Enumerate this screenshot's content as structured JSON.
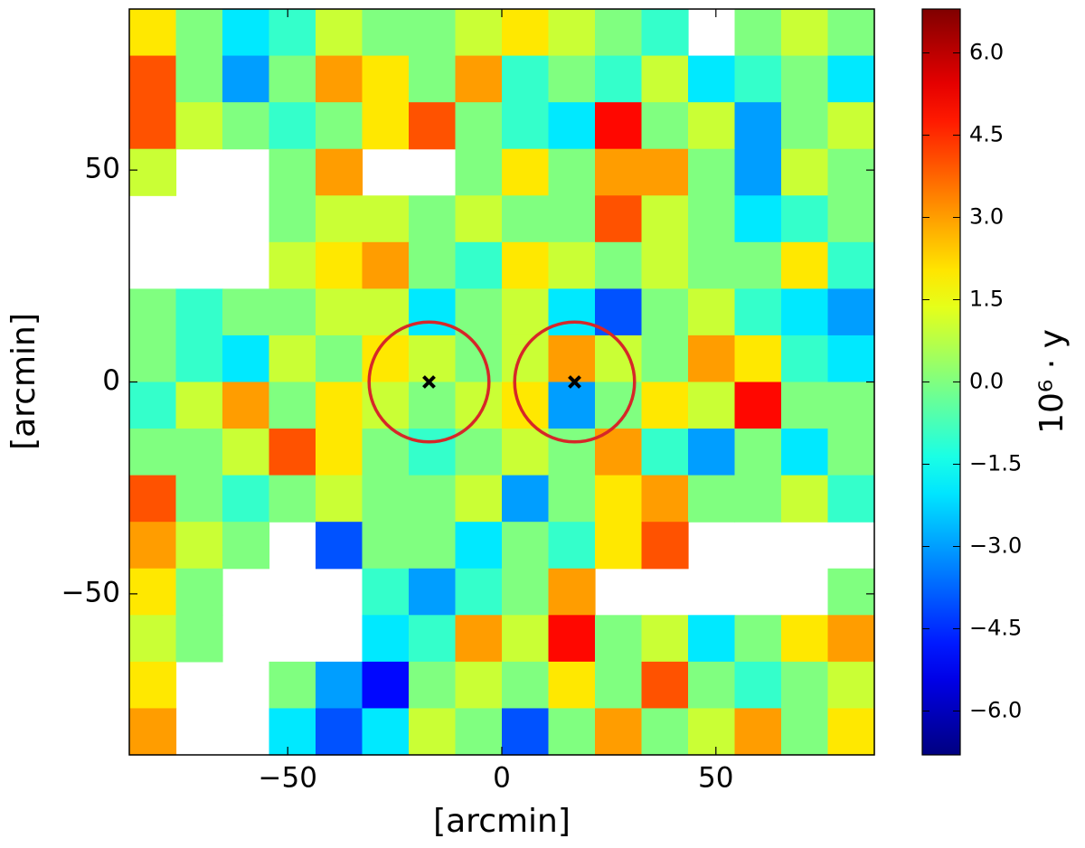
{
  "chart_data": {
    "type": "heatmap",
    "xlabel": "[arcmin]",
    "ylabel": "[arcmin]",
    "xlim": [
      -87,
      87
    ],
    "ylim": [
      -88,
      88
    ],
    "xticks": [
      {
        "value": -50,
        "label": "−50"
      },
      0,
      50
    ],
    "yticks": [
      {
        "value": -50,
        "label": "−50"
      },
      0,
      50
    ],
    "colormap": "jet",
    "clim": [
      -6.8,
      6.8
    ],
    "colorbar_label": "10⁶ · y",
    "colorbar_ticks": [
      {
        "value": -6,
        "label": "−6.0"
      },
      {
        "value": -4.5,
        "label": "−4.5"
      },
      {
        "value": -3,
        "label": "−3.0"
      },
      {
        "value": -1.5,
        "label": "−1.5"
      },
      {
        "value": 0,
        "label": "0.0"
      },
      {
        "value": 1.5,
        "label": "1.5"
      },
      {
        "value": 3,
        "label": "3.0"
      },
      {
        "value": 4.5,
        "label": "4.5"
      },
      {
        "value": 6,
        "label": "6.0"
      }
    ],
    "z": [
      [
        2,
        0,
        -2,
        -1,
        1,
        0,
        0,
        1,
        2,
        1,
        0,
        -1,
        null,
        0,
        1,
        0
      ],
      [
        4,
        0,
        -3,
        0,
        3,
        2,
        0,
        3,
        -1,
        0,
        -1,
        1,
        -2,
        -1,
        0,
        -2
      ],
      [
        4,
        1,
        0,
        -1,
        0,
        2,
        4,
        0,
        -1,
        -2,
        5,
        0,
        1,
        -3,
        0,
        1
      ],
      [
        1,
        null,
        null,
        0,
        3,
        null,
        null,
        0,
        2,
        0,
        3,
        3,
        0,
        -3,
        1,
        0
      ],
      [
        null,
        null,
        null,
        0,
        1,
        1,
        0,
        1,
        0,
        0,
        4,
        1,
        0,
        -2,
        -1,
        0
      ],
      [
        null,
        null,
        null,
        1,
        2,
        3,
        0,
        -1,
        2,
        1,
        0,
        1,
        0,
        0,
        2,
        -1
      ],
      [
        0,
        -1,
        0,
        0,
        1,
        1,
        -2,
        0,
        1,
        -2,
        -4,
        0,
        1,
        -1,
        -2,
        -3
      ],
      [
        0,
        -1,
        -2,
        1,
        0,
        2,
        1,
        0,
        1,
        3,
        1,
        0,
        3,
        2,
        -1,
        -2
      ],
      [
        -1,
        1,
        3,
        0,
        2,
        1,
        0,
        1,
        2,
        -3,
        0,
        2,
        1,
        5,
        0,
        0
      ],
      [
        0,
        0,
        1,
        4,
        2,
        0,
        -1,
        0,
        1,
        0,
        3,
        -1,
        -3,
        0,
        -2,
        0
      ],
      [
        4,
        0,
        -1,
        0,
        1,
        0,
        0,
        1,
        -3,
        0,
        2,
        3,
        0,
        0,
        1,
        -1
      ],
      [
        3,
        1,
        0,
        null,
        -4,
        0,
        0,
        -2,
        0,
        -1,
        2,
        4,
        null,
        null,
        null,
        null
      ],
      [
        2,
        0,
        null,
        null,
        null,
        -1,
        -3,
        -1,
        0,
        3,
        null,
        null,
        null,
        null,
        null,
        0
      ],
      [
        1,
        0,
        null,
        null,
        null,
        -2,
        -1,
        3,
        1,
        5,
        0,
        1,
        -2,
        0,
        2,
        3
      ],
      [
        2,
        null,
        null,
        0,
        -3,
        -5,
        0,
        1,
        0,
        2,
        0,
        4,
        0,
        -1,
        0,
        1
      ],
      [
        3,
        null,
        null,
        -2,
        -4,
        -2,
        1,
        0,
        -4,
        0,
        3,
        0,
        1,
        3,
        0,
        2
      ]
    ],
    "circles": [
      {
        "x": -17,
        "y": 0,
        "r": 14
      },
      {
        "x": 17,
        "y": 0,
        "r": 14
      }
    ],
    "circle_color": "#d62728",
    "markers": [
      {
        "x": -17,
        "y": 0
      },
      {
        "x": 17,
        "y": 0
      }
    ],
    "marker_color": "#000000"
  }
}
